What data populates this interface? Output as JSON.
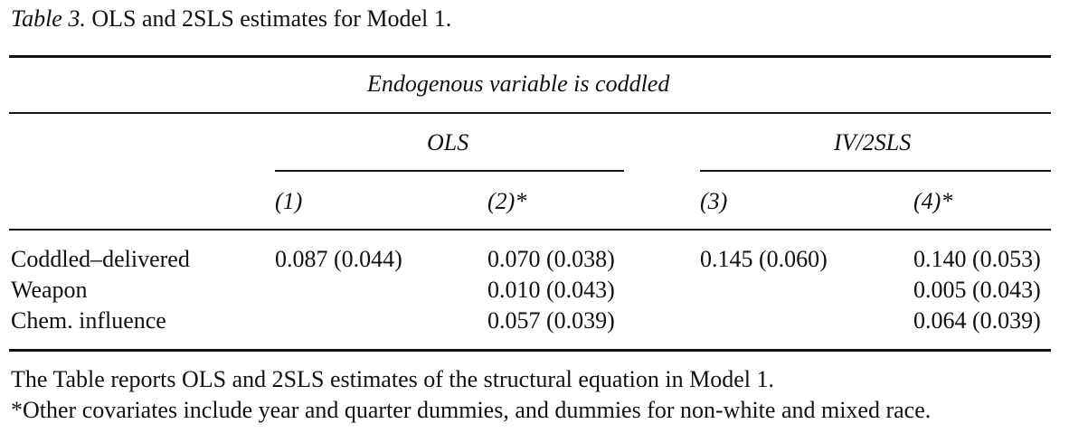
{
  "caption": {
    "label": "Table 3.",
    "text": "OLS and 2SLS estimates for Model 1."
  },
  "table": {
    "spanner": "Endogenous variable is coddled",
    "groups": [
      "OLS",
      "IV/2SLS"
    ],
    "columns": [
      "(1)",
      "(2)*",
      "(3)",
      "(4)*"
    ],
    "rows": [
      {
        "label": "Coddled–delivered",
        "cells": [
          "0.087 (0.044)",
          "0.070 (0.038)",
          "0.145 (0.060)",
          "0.140 (0.053)"
        ]
      },
      {
        "label": "Weapon",
        "cells": [
          "",
          "0.010 (0.043)",
          "",
          "0.005 (0.043)"
        ]
      },
      {
        "label": "Chem. influence",
        "cells": [
          "",
          "0.057 (0.039)",
          "",
          "0.064 (0.039)"
        ]
      }
    ]
  },
  "notes": [
    "The Table reports OLS and 2SLS estimates of the structural equation in Model 1.",
    "*Other covariates include year and quarter dummies, and dummies for non-white and mixed race."
  ]
}
